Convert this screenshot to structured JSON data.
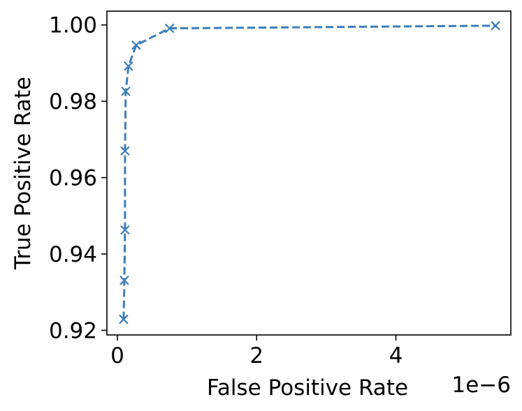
{
  "chart_data": {
    "type": "line",
    "xlabel": "False Positive Rate",
    "ylabel": "True Positive Rate",
    "x_offset_label": "1e−6",
    "xlim": [
      -0.15,
      5.65
    ],
    "ylim": [
      0.9188,
      1.0036
    ],
    "x_ticks": [
      {
        "value": 0,
        "label": "0"
      },
      {
        "value": 2,
        "label": "2"
      },
      {
        "value": 4,
        "label": "4"
      }
    ],
    "y_ticks": [
      {
        "value": 0.92,
        "label": "0.92"
      },
      {
        "value": 0.94,
        "label": "0.94"
      },
      {
        "value": 0.96,
        "label": "0.96"
      },
      {
        "value": 0.98,
        "label": "0.98"
      },
      {
        "value": 1.0,
        "label": "1.00"
      }
    ],
    "grid": false,
    "series": [
      {
        "color": "#3b7dba",
        "line_style": "dashed",
        "marker": "x",
        "x": [
          0.09,
          0.1,
          0.11,
          0.11,
          0.12,
          0.16,
          0.27,
          0.75,
          5.43
        ],
        "y": [
          0.9229,
          0.9331,
          0.9463,
          0.967,
          0.9826,
          0.9892,
          0.9947,
          0.9991,
          0.9998
        ]
      }
    ]
  }
}
